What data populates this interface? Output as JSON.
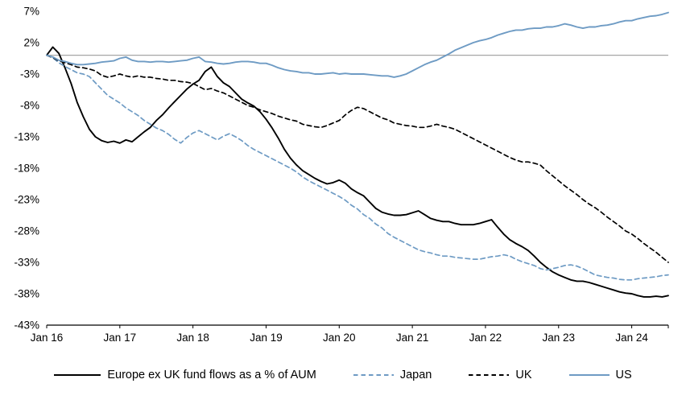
{
  "chart_data": {
    "type": "line",
    "title": "",
    "x_axis": {
      "tick_labels": [
        "Jan 16",
        "Jan 17",
        "Jan 18",
        "Jan 19",
        "Jan 20",
        "Jan 21",
        "Jan 22",
        "Jan 23",
        "Jan 24"
      ],
      "tick_months": [
        0,
        12,
        24,
        36,
        48,
        60,
        72,
        84,
        96
      ],
      "months_total": 102
    },
    "y_axis": {
      "tick_labels": [
        "7%",
        "2%",
        "-3%",
        "-8%",
        "-13%",
        "-18%",
        "-23%",
        "-28%",
        "-33%",
        "-38%",
        "-43%"
      ],
      "tick_values": [
        7,
        2,
        -3,
        -8,
        -13,
        -18,
        -23,
        -28,
        -33,
        -38,
        -43
      ],
      "max": 7,
      "min": -43,
      "zero_line": true
    },
    "colors": {
      "black_series": "#000000",
      "blue_series": "#6e9bc4",
      "zero_line": "#a6a6a6",
      "axis_line": "#000000"
    },
    "legend_position": "bottom",
    "series": [
      {
        "name": "Europe ex UK fund flows as a % of AUM",
        "color": "#000000",
        "dash": "solid",
        "stroke_width": 1.9,
        "values": [
          0.0,
          1.3,
          0.3,
          -2.0,
          -4.5,
          -7.5,
          -9.8,
          -11.8,
          -13.0,
          -13.6,
          -13.9,
          -13.7,
          -14.0,
          -13.5,
          -13.8,
          -13.0,
          -12.2,
          -11.5,
          -10.4,
          -9.5,
          -8.4,
          -7.4,
          -6.4,
          -5.4,
          -4.6,
          -4.0,
          -2.6,
          -1.9,
          -3.4,
          -4.4,
          -5.0,
          -6.0,
          -7.0,
          -7.6,
          -8.1,
          -9.0,
          -10.2,
          -11.6,
          -13.2,
          -15.0,
          -16.4,
          -17.5,
          -18.4,
          -19.0,
          -19.6,
          -20.1,
          -20.5,
          -20.3,
          -19.9,
          -20.4,
          -21.3,
          -21.9,
          -22.4,
          -23.4,
          -24.4,
          -25.0,
          -25.3,
          -25.5,
          -25.5,
          -25.4,
          -25.1,
          -24.8,
          -25.4,
          -26.0,
          -26.3,
          -26.5,
          -26.5,
          -26.8,
          -27.0,
          -27.0,
          -27.0,
          -26.8,
          -26.5,
          -26.2,
          -27.4,
          -28.5,
          -29.4,
          -30.0,
          -30.5,
          -31.1,
          -32.0,
          -33.0,
          -33.8,
          -34.5,
          -35.0,
          -35.4,
          -35.8,
          -36.0,
          -36.0,
          -36.2,
          -36.5,
          -36.8,
          -37.1,
          -37.4,
          -37.7,
          -37.9,
          -38.0,
          -38.3,
          -38.5,
          -38.5,
          -38.4,
          -38.5,
          -38.3
        ]
      },
      {
        "name": "Japan",
        "color": "#6e9bc4",
        "dash": "dashed",
        "stroke_width": 1.7,
        "values": [
          0.0,
          -0.4,
          -1.2,
          -1.8,
          -2.3,
          -2.8,
          -3.0,
          -3.4,
          -4.4,
          -5.4,
          -6.4,
          -7.0,
          -7.6,
          -8.4,
          -9.0,
          -9.6,
          -10.4,
          -11.0,
          -11.6,
          -12.0,
          -12.6,
          -13.4,
          -14.0,
          -13.1,
          -12.4,
          -12.0,
          -12.5,
          -13.0,
          -13.5,
          -12.9,
          -12.5,
          -13.0,
          -13.6,
          -14.4,
          -15.0,
          -15.5,
          -16.0,
          -16.5,
          -17.0,
          -17.5,
          -18.0,
          -18.6,
          -19.4,
          -20.0,
          -20.5,
          -21.0,
          -21.5,
          -22.0,
          -22.5,
          -23.1,
          -23.9,
          -24.5,
          -25.4,
          -26.0,
          -26.9,
          -27.5,
          -28.4,
          -29.0,
          -29.5,
          -30.0,
          -30.5,
          -31.0,
          -31.3,
          -31.5,
          -31.8,
          -32.0,
          -32.0,
          -32.2,
          -32.3,
          -32.4,
          -32.5,
          -32.5,
          -32.3,
          -32.1,
          -32.0,
          -31.8,
          -32.0,
          -32.5,
          -32.9,
          -33.2,
          -33.5,
          -34.0,
          -34.2,
          -34.0,
          -33.8,
          -33.5,
          -33.4,
          -33.6,
          -34.0,
          -34.5,
          -35.0,
          -35.2,
          -35.4,
          -35.5,
          -35.7,
          -35.8,
          -35.8,
          -35.6,
          -35.5,
          -35.4,
          -35.3,
          -35.1,
          -35.0
        ]
      },
      {
        "name": "UK",
        "color": "#000000",
        "dash": "dashed",
        "stroke_width": 1.7,
        "values": [
          0.0,
          -0.4,
          -0.9,
          -1.2,
          -1.5,
          -1.9,
          -2.0,
          -2.2,
          -2.5,
          -3.2,
          -3.5,
          -3.3,
          -3.0,
          -3.3,
          -3.5,
          -3.3,
          -3.5,
          -3.5,
          -3.7,
          -3.8,
          -4.0,
          -4.0,
          -4.2,
          -4.3,
          -4.5,
          -5.0,
          -5.5,
          -5.3,
          -5.7,
          -6.0,
          -6.5,
          -7.0,
          -7.5,
          -8.0,
          -8.3,
          -8.7,
          -9.0,
          -9.3,
          -9.7,
          -10.0,
          -10.3,
          -10.5,
          -11.0,
          -11.2,
          -11.4,
          -11.5,
          -11.2,
          -10.8,
          -10.4,
          -9.5,
          -8.8,
          -8.3,
          -8.5,
          -9.0,
          -9.5,
          -10.0,
          -10.3,
          -10.8,
          -11.0,
          -11.2,
          -11.3,
          -11.5,
          -11.5,
          -11.3,
          -11.0,
          -11.3,
          -11.5,
          -11.8,
          -12.3,
          -12.8,
          -13.3,
          -13.8,
          -14.3,
          -14.8,
          -15.3,
          -15.8,
          -16.3,
          -16.7,
          -17.0,
          -17.0,
          -17.2,
          -17.5,
          -18.4,
          -19.2,
          -20.0,
          -20.8,
          -21.5,
          -22.2,
          -23.0,
          -23.7,
          -24.3,
          -25.0,
          -25.8,
          -26.5,
          -27.2,
          -28.0,
          -28.5,
          -29.2,
          -30.0,
          -30.7,
          -31.4,
          -32.2,
          -33.0
        ]
      },
      {
        "name": "US",
        "color": "#6e9bc4",
        "dash": "solid",
        "stroke_width": 1.9,
        "values": [
          0.0,
          -0.3,
          -0.8,
          -1.0,
          -1.3,
          -1.5,
          -1.5,
          -1.4,
          -1.3,
          -1.1,
          -1.0,
          -0.9,
          -0.5,
          -0.3,
          -0.8,
          -1.0,
          -1.0,
          -1.1,
          -1.0,
          -1.0,
          -1.1,
          -1.0,
          -0.9,
          -0.8,
          -0.5,
          -0.3,
          -1.0,
          -1.1,
          -1.3,
          -1.4,
          -1.3,
          -1.1,
          -1.0,
          -1.0,
          -1.1,
          -1.3,
          -1.3,
          -1.6,
          -2.0,
          -2.3,
          -2.5,
          -2.6,
          -2.8,
          -2.8,
          -3.0,
          -3.0,
          -2.9,
          -2.8,
          -3.0,
          -2.9,
          -3.0,
          -3.0,
          -3.0,
          -3.1,
          -3.2,
          -3.3,
          -3.3,
          -3.5,
          -3.3,
          -3.0,
          -2.5,
          -2.0,
          -1.5,
          -1.1,
          -0.8,
          -0.3,
          0.2,
          0.8,
          1.2,
          1.6,
          2.0,
          2.3,
          2.5,
          2.8,
          3.2,
          3.5,
          3.8,
          4.0,
          4.0,
          4.2,
          4.3,
          4.3,
          4.5,
          4.5,
          4.7,
          5.0,
          4.8,
          4.5,
          4.3,
          4.5,
          4.5,
          4.7,
          4.8,
          5.0,
          5.3,
          5.5,
          5.5,
          5.8,
          6.0,
          6.2,
          6.3,
          6.5,
          6.8
        ]
      }
    ]
  }
}
